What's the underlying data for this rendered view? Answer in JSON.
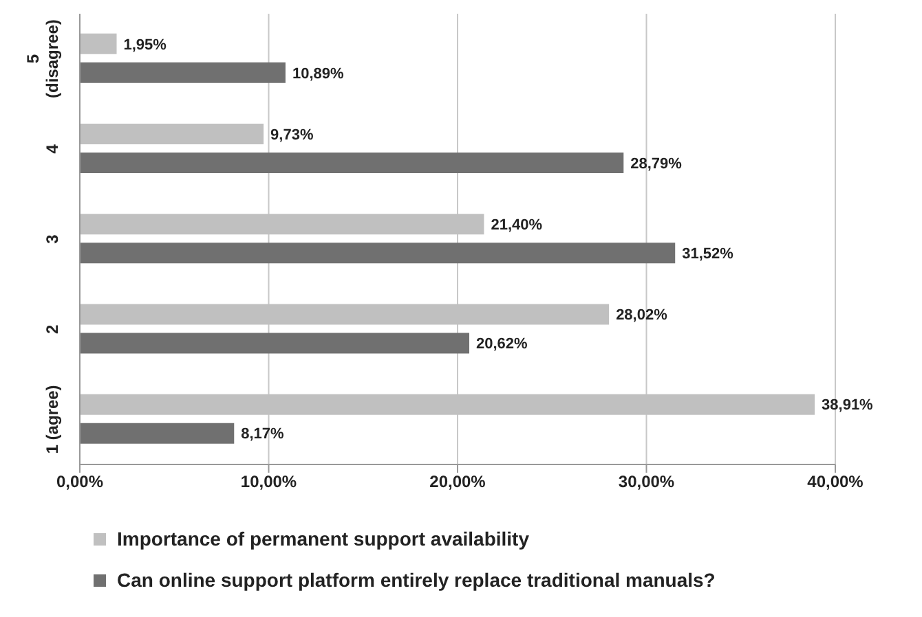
{
  "chart_data": {
    "type": "bar",
    "orientation": "horizontal",
    "categories": [
      "5 (disagree)",
      "4",
      "3",
      "2",
      "1 (agree)"
    ],
    "series": [
      {
        "name": "Importance of permanent support availability",
        "color": "#c0c0c0",
        "values": [
          1.95,
          9.73,
          21.4,
          28.02,
          38.91
        ],
        "value_labels": [
          "1,95%",
          "9,73%",
          "21,40%",
          "28,02%",
          "38,91%"
        ]
      },
      {
        "name": "Can online support platform entirely replace traditional manuals?",
        "color": "#707070",
        "values": [
          10.89,
          28.79,
          31.52,
          20.62,
          8.17
        ],
        "value_labels": [
          "10,89%",
          "28,79%",
          "31,52%",
          "20,62%",
          "8,17%"
        ]
      }
    ],
    "xlim": [
      0,
      40
    ],
    "xticks": [
      {
        "value": 0,
        "label": "0,00%"
      },
      {
        "value": 10,
        "label": "10,00%"
      },
      {
        "value": 20,
        "label": "20,00%"
      },
      {
        "value": 30,
        "label": "30,00%"
      },
      {
        "value": 40,
        "label": "40,00%"
      }
    ],
    "grid": "x",
    "legend": "bottom"
  }
}
